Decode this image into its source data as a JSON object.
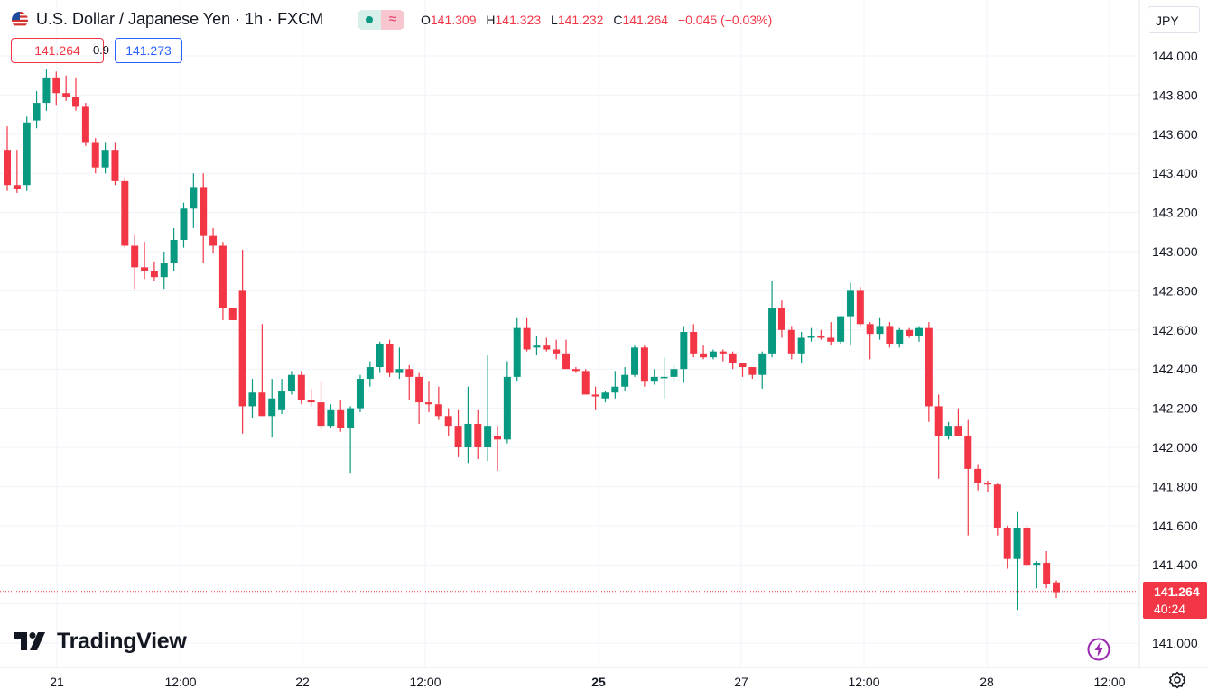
{
  "header": {
    "title": "U.S. Dollar / Japanese Yen · 1h · FXCM",
    "market_status_icon": "market-open-dot-icon",
    "indicator_icon": "wave-icon",
    "ohlc": [
      {
        "key": "O",
        "value": "141.309"
      },
      {
        "key": "H",
        "value": "141.323"
      },
      {
        "key": "L",
        "value": "141.232"
      },
      {
        "key": "C",
        "value": "141.264"
      }
    ],
    "change": "−0.045 (−0.03%)"
  },
  "quote": {
    "bid": "141.264",
    "spread": "0.9",
    "ask": "141.273"
  },
  "currency_button": "JPY",
  "last_price": {
    "price": "141.264",
    "countdown": "40:24"
  },
  "brand": "TradingView",
  "colors": {
    "up": "#089981",
    "down": "#f23645",
    "grid": "#f0f3fa",
    "text": "#131722",
    "ask": "#2962ff"
  },
  "chart_data": {
    "type": "candlestick",
    "title": "U.S. Dollar / Japanese Yen · 1h · FXCM",
    "interval": "1h",
    "y_range": [
      140.98,
      144.02
    ],
    "y_ticks": [
      "144.000",
      "143.800",
      "143.600",
      "143.400",
      "143.200",
      "143.000",
      "142.800",
      "142.600",
      "142.400",
      "142.200",
      "142.000",
      "141.800",
      "141.600",
      "141.400",
      "141.000"
    ],
    "x_ticks": [
      {
        "label": "21",
        "bold": false
      },
      {
        "label": "12:00",
        "bold": false
      },
      {
        "label": "22",
        "bold": false
      },
      {
        "label": "12:00",
        "bold": false
      },
      {
        "label": "25",
        "bold": true
      },
      {
        "label": "27",
        "bold": false
      },
      {
        "label": "12:00",
        "bold": false
      },
      {
        "label": "28",
        "bold": false
      },
      {
        "label": "12:00",
        "bold": false
      }
    ],
    "last_close": 141.264,
    "grid": true,
    "candles": [
      [
        143.52,
        143.64,
        143.31,
        143.34
      ],
      [
        143.34,
        143.52,
        143.3,
        143.32
      ],
      [
        143.34,
        143.69,
        143.31,
        143.66
      ],
      [
        143.67,
        143.82,
        143.63,
        143.76
      ],
      [
        143.76,
        143.93,
        143.72,
        143.89
      ],
      [
        143.89,
        143.92,
        143.75,
        143.81
      ],
      [
        143.81,
        143.9,
        143.77,
        143.79
      ],
      [
        143.79,
        143.89,
        143.72,
        143.74
      ],
      [
        143.74,
        143.76,
        143.54,
        143.56
      ],
      [
        143.56,
        143.58,
        143.4,
        143.43
      ],
      [
        143.43,
        143.56,
        143.4,
        143.52
      ],
      [
        143.52,
        143.56,
        143.34,
        143.36
      ],
      [
        143.36,
        143.38,
        143.02,
        143.03
      ],
      [
        143.03,
        143.09,
        142.81,
        142.92
      ],
      [
        142.92,
        143.05,
        142.86,
        142.9
      ],
      [
        142.9,
        142.95,
        142.85,
        142.87
      ],
      [
        142.87,
        143.0,
        142.81,
        142.94
      ],
      [
        142.94,
        143.12,
        142.9,
        143.06
      ],
      [
        143.06,
        143.25,
        143.02,
        143.22
      ],
      [
        143.22,
        143.4,
        143.12,
        143.33
      ],
      [
        143.33,
        143.4,
        142.94,
        143.08
      ],
      [
        143.08,
        143.12,
        142.99,
        143.03
      ],
      [
        143.03,
        143.05,
        142.65,
        142.71
      ],
      [
        142.71,
        142.7,
        142.65,
        142.65
      ],
      [
        142.8,
        143.01,
        142.07,
        142.21
      ],
      [
        142.21,
        142.35,
        142.15,
        142.28
      ],
      [
        142.28,
        142.63,
        142.16,
        142.16
      ],
      [
        142.16,
        142.35,
        142.05,
        142.25
      ],
      [
        142.19,
        142.35,
        142.17,
        142.29
      ],
      [
        142.29,
        142.39,
        142.27,
        142.37
      ],
      [
        142.37,
        142.39,
        142.22,
        142.24
      ],
      [
        142.24,
        142.3,
        142.21,
        142.23
      ],
      [
        142.23,
        142.34,
        142.09,
        142.11
      ],
      [
        142.11,
        142.22,
        142.1,
        142.19
      ],
      [
        142.19,
        142.24,
        142.08,
        142.1
      ],
      [
        142.1,
        142.21,
        141.87,
        142.2
      ],
      [
        142.2,
        142.37,
        142.18,
        142.35
      ],
      [
        142.35,
        142.44,
        142.31,
        142.41
      ],
      [
        142.41,
        142.54,
        142.38,
        142.53
      ],
      [
        142.53,
        142.55,
        142.36,
        142.38
      ],
      [
        142.38,
        142.51,
        142.35,
        142.4
      ],
      [
        142.4,
        142.42,
        142.24,
        142.36
      ],
      [
        142.36,
        142.38,
        142.12,
        142.23
      ],
      [
        142.23,
        142.34,
        142.18,
        142.22
      ],
      [
        142.22,
        142.31,
        142.14,
        142.16
      ],
      [
        142.16,
        142.2,
        142.06,
        142.11
      ],
      [
        142.11,
        142.19,
        141.95,
        142.0
      ],
      [
        142.0,
        142.31,
        141.92,
        142.12
      ],
      [
        142.12,
        142.19,
        141.94,
        142.0
      ],
      [
        142.0,
        142.47,
        141.93,
        142.11
      ],
      [
        142.06,
        142.11,
        141.88,
        142.04
      ],
      [
        142.04,
        142.44,
        142.02,
        142.36
      ],
      [
        142.36,
        142.66,
        142.34,
        142.61
      ],
      [
        142.61,
        142.66,
        142.49,
        142.5
      ],
      [
        142.51,
        142.57,
        142.47,
        142.52
      ],
      [
        142.52,
        142.56,
        142.49,
        142.5
      ],
      [
        142.5,
        142.55,
        142.45,
        142.48
      ],
      [
        142.48,
        142.55,
        142.42,
        142.4
      ],
      [
        142.4,
        142.41,
        142.38,
        142.39
      ],
      [
        142.39,
        142.4,
        142.27,
        142.27
      ],
      [
        142.27,
        142.31,
        142.19,
        142.26
      ],
      [
        142.25,
        142.29,
        142.23,
        142.28
      ],
      [
        142.28,
        142.39,
        142.25,
        142.31
      ],
      [
        142.31,
        142.41,
        142.29,
        142.37
      ],
      [
        142.37,
        142.52,
        142.36,
        142.51
      ],
      [
        142.51,
        142.52,
        142.31,
        142.34
      ],
      [
        142.34,
        142.4,
        142.32,
        142.36
      ],
      [
        142.36,
        142.46,
        142.25,
        142.36
      ],
      [
        142.36,
        142.42,
        142.34,
        142.4
      ],
      [
        142.4,
        142.62,
        142.33,
        142.59
      ],
      [
        142.59,
        142.63,
        142.46,
        142.48
      ],
      [
        142.48,
        142.52,
        142.45,
        142.46
      ],
      [
        142.46,
        142.5,
        142.45,
        142.49
      ],
      [
        142.49,
        142.5,
        142.44,
        142.48
      ],
      [
        142.48,
        142.49,
        142.4,
        142.43
      ],
      [
        142.43,
        142.43,
        142.36,
        142.41
      ],
      [
        142.41,
        142.4,
        142.35,
        142.37
      ],
      [
        142.37,
        142.49,
        142.3,
        142.48
      ],
      [
        142.48,
        142.85,
        142.46,
        142.71
      ],
      [
        142.71,
        142.75,
        142.56,
        142.6
      ],
      [
        142.6,
        142.62,
        142.45,
        142.48
      ],
      [
        142.48,
        142.59,
        142.43,
        142.56
      ],
      [
        142.56,
        142.61,
        142.54,
        142.57
      ],
      [
        142.57,
        142.6,
        142.55,
        142.56
      ],
      [
        142.56,
        142.64,
        142.52,
        142.54
      ],
      [
        142.54,
        142.67,
        142.53,
        142.67
      ],
      [
        142.67,
        142.84,
        142.52,
        142.8
      ],
      [
        142.8,
        142.82,
        142.62,
        142.63
      ],
      [
        142.63,
        142.64,
        142.45,
        142.58
      ],
      [
        142.58,
        142.66,
        142.55,
        142.62
      ],
      [
        142.62,
        142.64,
        142.51,
        142.53
      ],
      [
        142.53,
        142.61,
        142.51,
        142.6
      ],
      [
        142.6,
        142.61,
        142.56,
        142.57
      ],
      [
        142.57,
        142.62,
        142.54,
        142.61
      ],
      [
        142.61,
        142.64,
        142.13,
        142.21
      ],
      [
        142.21,
        142.27,
        141.84,
        142.06
      ],
      [
        142.06,
        142.13,
        142.04,
        142.11
      ],
      [
        142.11,
        142.2,
        142.06,
        142.06
      ],
      [
        142.06,
        142.14,
        141.55,
        141.89
      ],
      [
        141.89,
        141.91,
        141.78,
        141.82
      ],
      [
        141.82,
        141.83,
        141.77,
        141.81
      ],
      [
        141.81,
        141.82,
        141.55,
        141.59
      ],
      [
        141.59,
        141.6,
        141.38,
        141.43
      ],
      [
        141.43,
        141.67,
        141.17,
        141.59
      ],
      [
        141.59,
        141.6,
        141.39,
        141.4
      ],
      [
        141.4,
        141.42,
        141.28,
        141.41
      ],
      [
        141.41,
        141.47,
        141.28,
        141.3
      ],
      [
        141.31,
        141.32,
        141.23,
        141.26
      ]
    ]
  }
}
